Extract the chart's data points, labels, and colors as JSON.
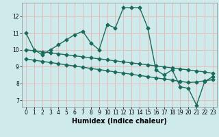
{
  "title": "",
  "xlabel": "Humidex (Indice chaleur)",
  "bg_color": "#ceeaea",
  "line_color": "#1a6b5a",
  "grid_color": "#e8b4b4",
  "x_values": [
    0,
    1,
    2,
    3,
    4,
    5,
    6,
    7,
    8,
    9,
    10,
    11,
    12,
    13,
    14,
    15,
    16,
    17,
    18,
    19,
    20,
    21,
    22,
    23
  ],
  "y_main": [
    11.0,
    10.0,
    9.7,
    10.0,
    10.3,
    10.6,
    10.9,
    11.1,
    10.4,
    10.0,
    11.5,
    11.3,
    12.5,
    12.5,
    12.5,
    11.3,
    8.8,
    8.5,
    8.8,
    7.8,
    7.7,
    6.7,
    8.1,
    8.4
  ],
  "y_upper": [
    10.0,
    9.94,
    9.88,
    9.82,
    9.76,
    9.7,
    9.64,
    9.58,
    9.52,
    9.46,
    9.4,
    9.34,
    9.28,
    9.22,
    9.16,
    9.1,
    9.04,
    8.98,
    8.92,
    8.86,
    8.8,
    8.74,
    8.68,
    8.6
  ],
  "y_lower": [
    9.45,
    9.38,
    9.31,
    9.24,
    9.17,
    9.1,
    9.03,
    8.96,
    8.89,
    8.82,
    8.75,
    8.68,
    8.61,
    8.54,
    8.47,
    8.4,
    8.33,
    8.26,
    8.19,
    8.12,
    8.05,
    8.08,
    8.15,
    8.22
  ],
  "ylim": [
    6.6,
    12.8
  ],
  "yticks": [
    7,
    8,
    9,
    10,
    11,
    12
  ],
  "xlim": [
    -0.5,
    23.5
  ],
  "xticks": [
    0,
    1,
    2,
    3,
    4,
    5,
    6,
    7,
    8,
    9,
    10,
    11,
    12,
    13,
    14,
    15,
    16,
    17,
    18,
    19,
    20,
    21,
    22,
    23
  ],
  "marker": "D",
  "markersize": 2.5,
  "linewidth": 1.0
}
